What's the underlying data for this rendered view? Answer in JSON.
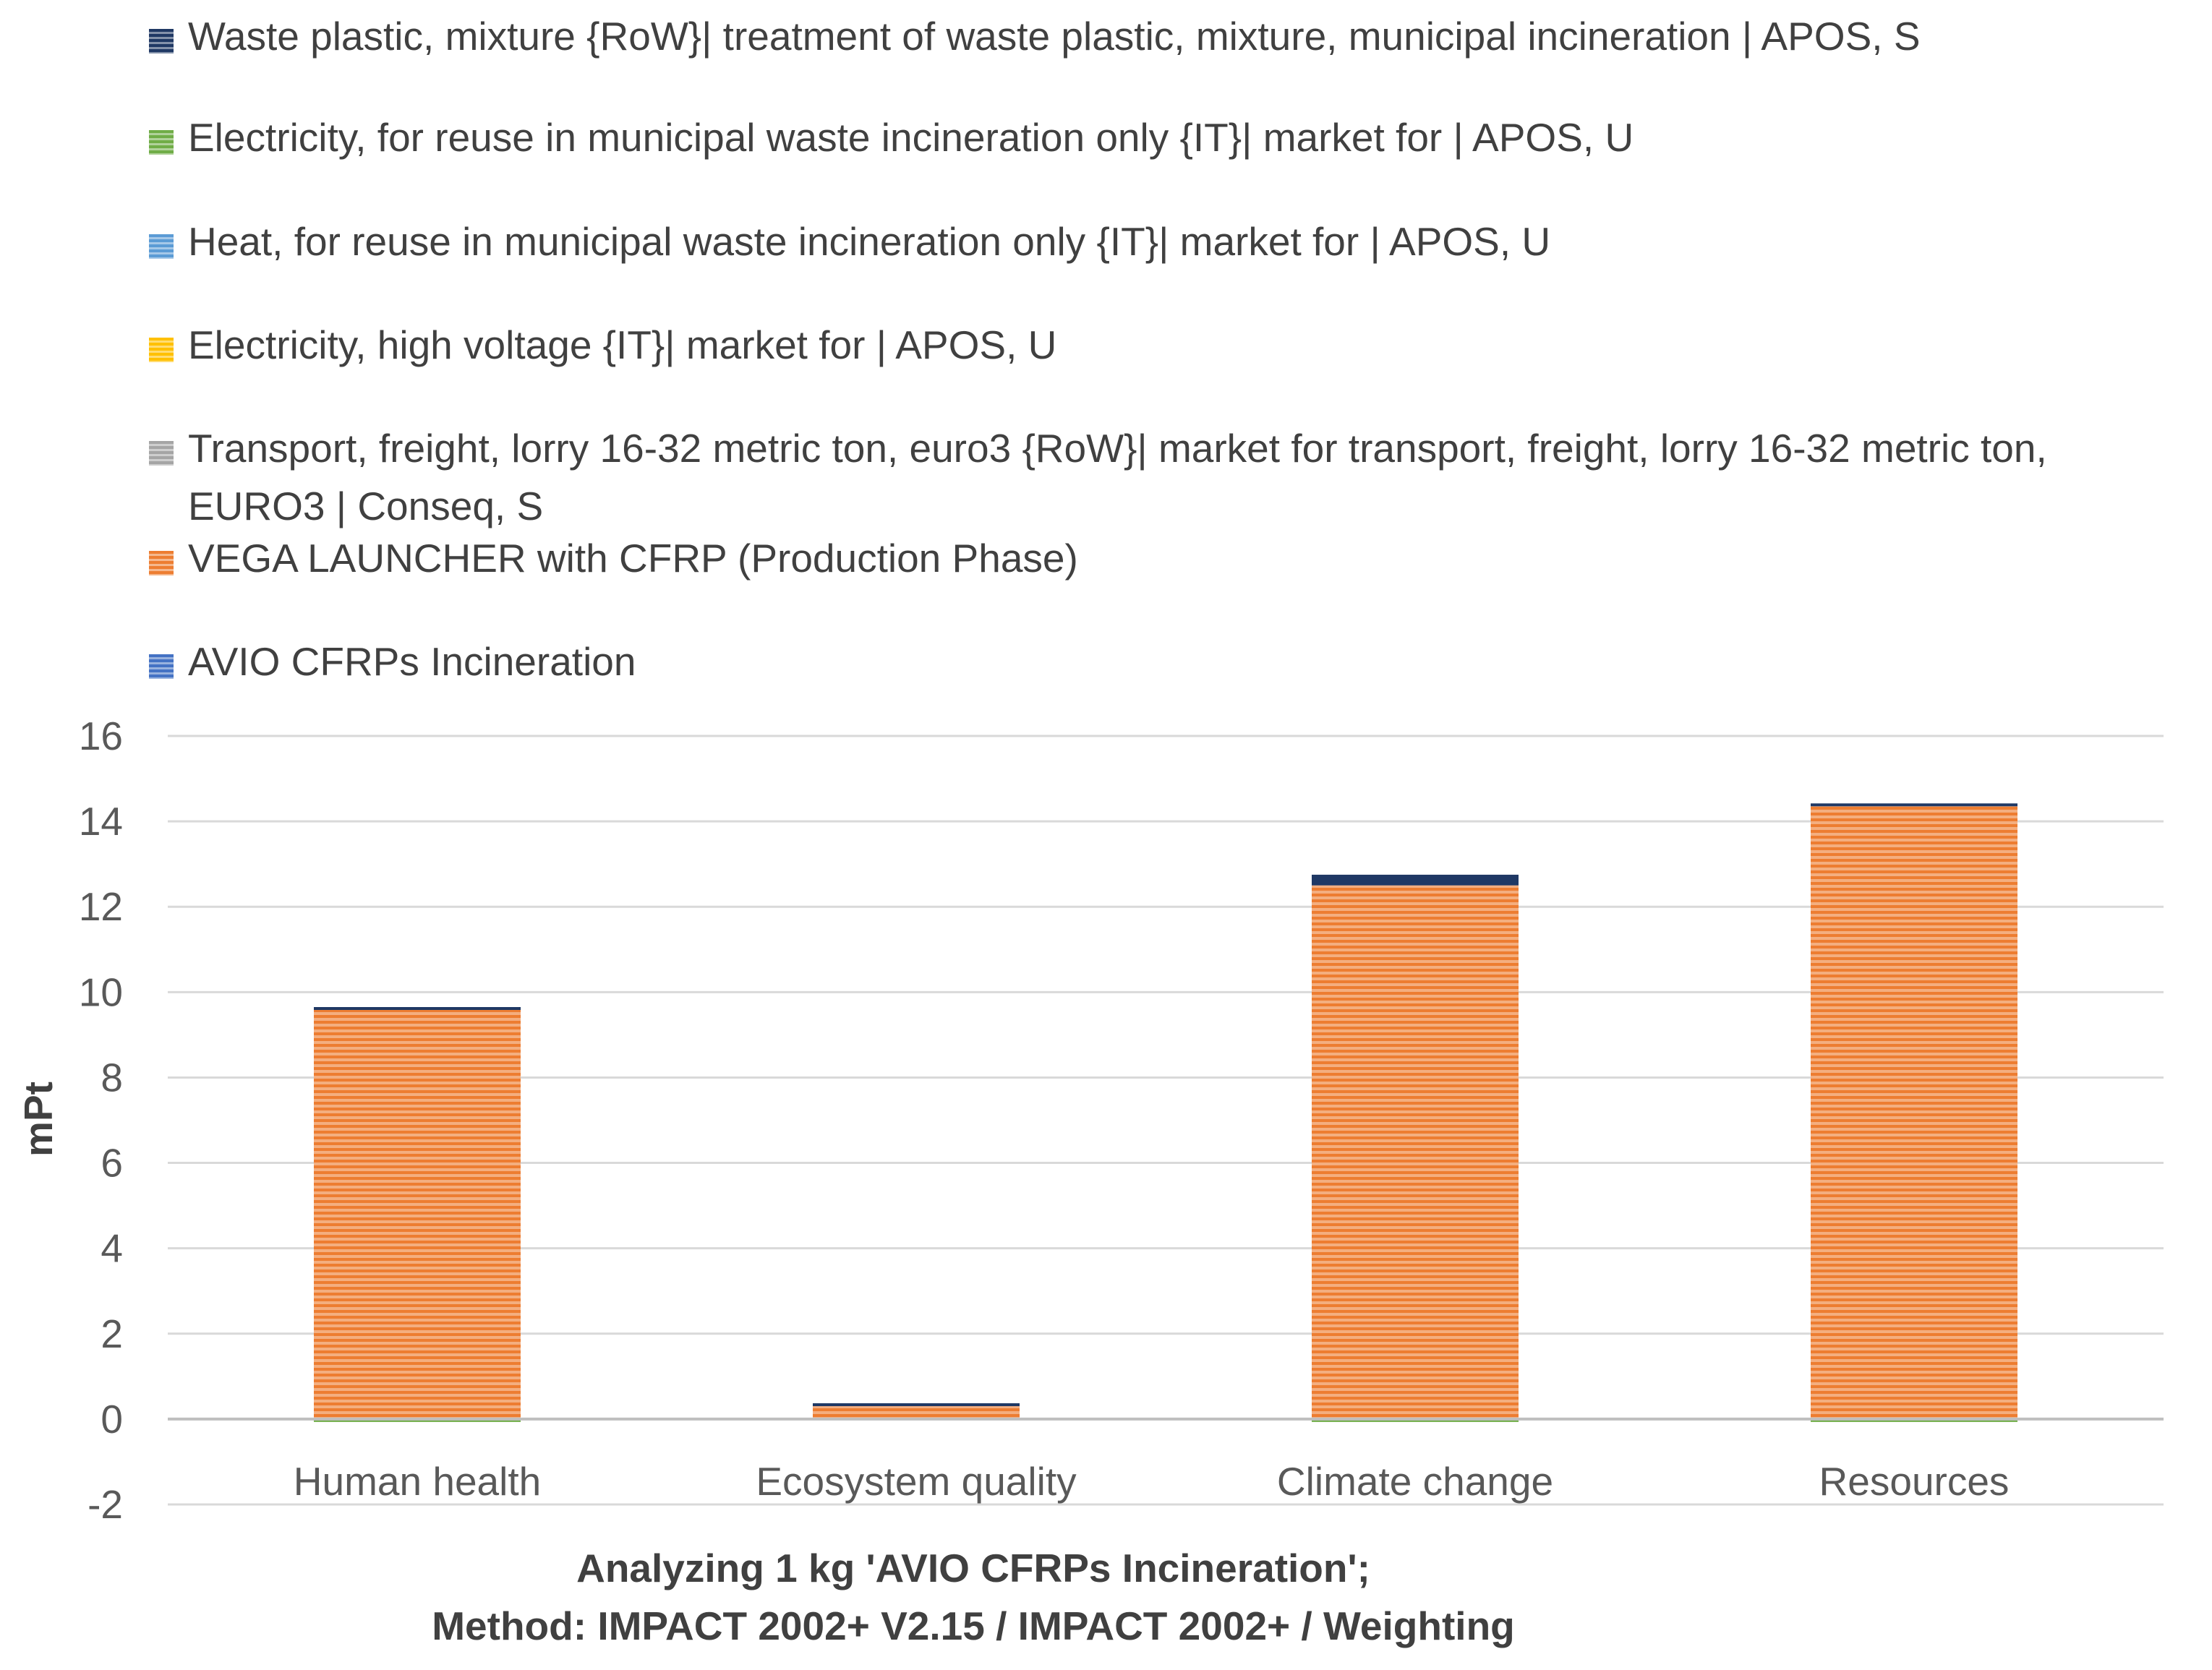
{
  "chart_data": {
    "type": "bar",
    "stacked": true,
    "categories": [
      "Human health",
      "Ecosystem quality",
      "Climate change",
      "Resources"
    ],
    "series": [
      {
        "name": "Waste plastic, mixture {RoW}| treatment of waste plastic, mixture, municipal incineration | APOS, S",
        "color": "#1f3864",
        "values": [
          0.05,
          0.02,
          0.25,
          0.02
        ]
      },
      {
        "name": "Electricity, for reuse in municipal waste incineration only {IT}| market for | APOS, U",
        "color": "#70ad47",
        "values": [
          -0.05,
          0,
          -0.02,
          -0.01
        ]
      },
      {
        "name": "Heat, for reuse in municipal waste incineration only {IT}| market for | APOS, U",
        "color": "#5b9bd5",
        "values": [
          0,
          0,
          0,
          0
        ]
      },
      {
        "name": "Electricity, high voltage {IT}| market for | APOS, U",
        "color": "#ffc000",
        "values": [
          0,
          0,
          0,
          0
        ]
      },
      {
        "name": "Transport, freight, lorry 16-32 metric ton, euro3 {RoW}| market for transport, freight, lorry 16-32 metric ton, EURO3 | Conseq, S",
        "color": "#a5a5a5",
        "values": [
          0,
          0,
          0,
          0
        ]
      },
      {
        "name": "VEGA LAUNCHER with CFRP (Production Phase)",
        "color": "#ed7d31",
        "values": [
          9.6,
          0.35,
          12.5,
          14.4
        ]
      },
      {
        "name": "AVIO CFRPs Incineration",
        "color": "#4472c4",
        "values": [
          0,
          0,
          0,
          0
        ]
      }
    ],
    "ylabel": "mPt",
    "ylim": [
      -2,
      16
    ],
    "yticks": [
      "16",
      "14",
      "12",
      "10",
      "8",
      "6",
      "4",
      "2",
      "0",
      "-2"
    ],
    "xlabel_line1": "Analyzing 1 kg 'AVIO CFRPs Incineration';",
    "xlabel_line2": "Method: IMPACT 2002+ V2.15 / IMPACT 2002+ / Weighting",
    "legend_position": "top",
    "grid": true
  }
}
